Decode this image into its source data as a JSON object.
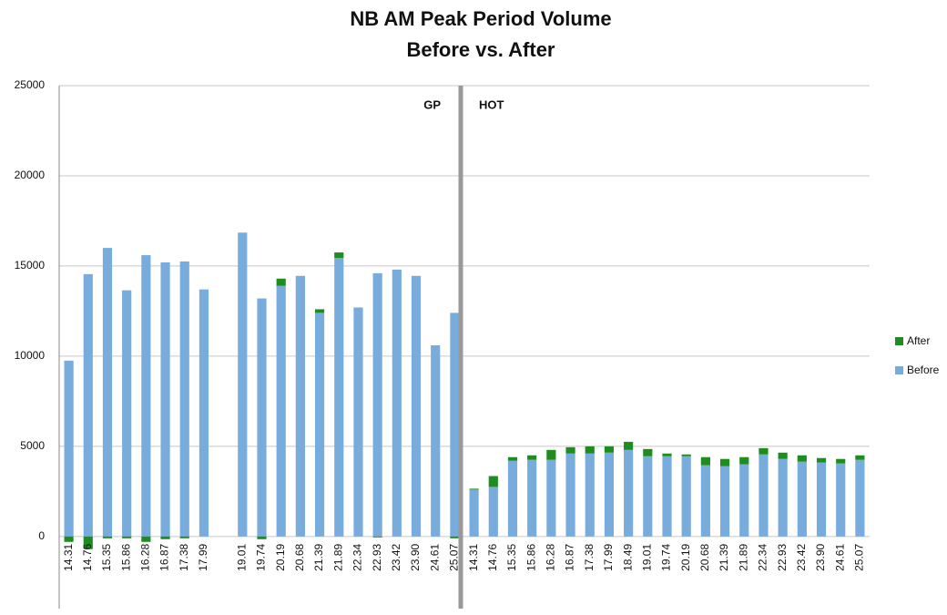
{
  "chart_data": {
    "type": "stacked_bar",
    "title": "NB AM Peak Period Volume",
    "subtitle": "Before vs. After",
    "annotations": [
      "GP",
      "HOT"
    ],
    "categories": [
      "14.31",
      "14.76",
      "15.35",
      "15.86",
      "16.28",
      "16.87",
      "17.38",
      "17.99",
      null,
      "19.01",
      "19.74",
      "20.19",
      "20.68",
      "21.39",
      "21.89",
      "22.34",
      "22.93",
      "23.42",
      "23.90",
      "24.61",
      "25.07",
      "14.31",
      "14.76",
      "15.35",
      "15.86",
      "16.28",
      "16.87",
      "17.38",
      "17.99",
      "18.49",
      "19.01",
      "19.74",
      "20.19",
      "20.68",
      "21.39",
      "21.89",
      "22.34",
      "22.93",
      "23.42",
      "23.90",
      "24.61",
      "25.07"
    ],
    "series": [
      {
        "name": "Before",
        "color": "#78acdc",
        "values": [
          9750,
          14550,
          16000,
          13650,
          15600,
          15200,
          15250,
          13700,
          null,
          16850,
          13200,
          13900,
          14450,
          12400,
          15450,
          12700,
          14600,
          14800,
          14450,
          10600,
          12400,
          2600,
          2750,
          4200,
          4250,
          4250,
          4600,
          4600,
          4650,
          4800,
          4450,
          4450,
          4450,
          3950,
          3900,
          4000,
          4550,
          4300,
          4150,
          4100,
          4050,
          4250
        ]
      },
      {
        "name": "After",
        "color": "#1e8c1e",
        "values": [
          -300,
          -700,
          -100,
          -100,
          -300,
          -150,
          -100,
          0,
          null,
          0,
          -150,
          400,
          0,
          200,
          300,
          0,
          -50,
          0,
          0,
          0,
          -100,
          50,
          600,
          200,
          250,
          550,
          350,
          400,
          350,
          450,
          400,
          150,
          100,
          450,
          400,
          400,
          350,
          350,
          350,
          250,
          250,
          250
        ]
      }
    ],
    "ylim": [
      -4000,
      25000
    ],
    "yticks": [
      0,
      5000,
      10000,
      15000,
      20000,
      25000
    ],
    "grid": true,
    "legend": "right"
  }
}
